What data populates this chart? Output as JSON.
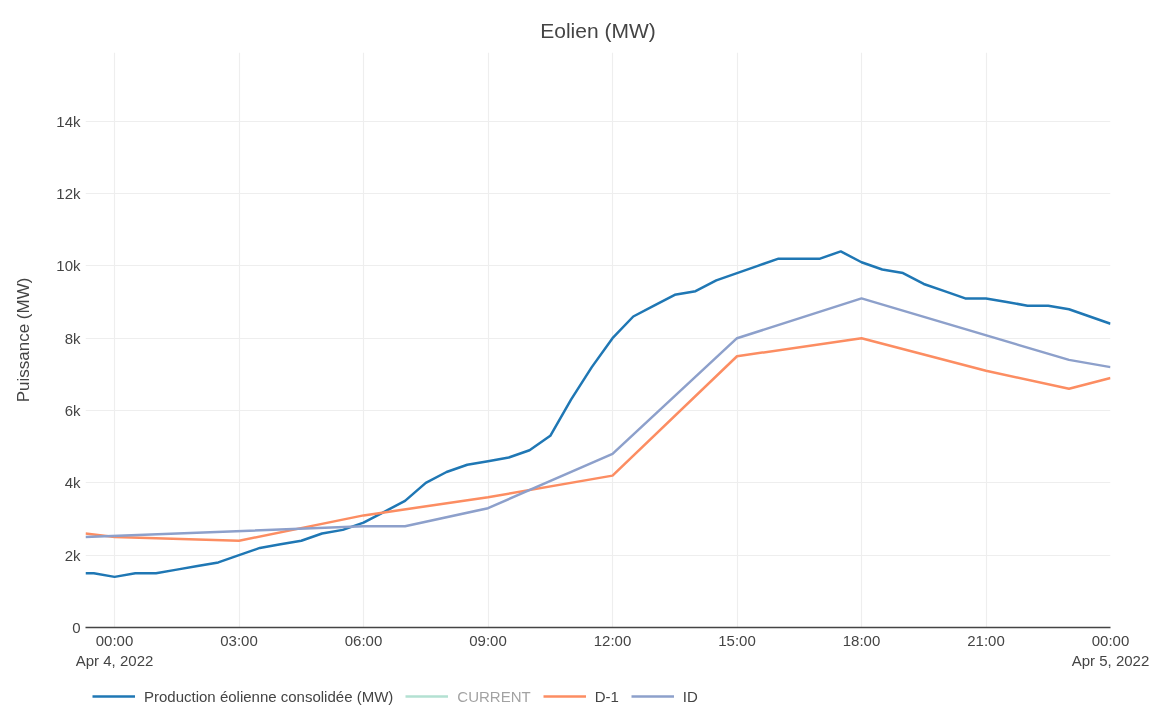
{
  "chart_data": {
    "type": "line",
    "title": "Eolien (MW)",
    "ylabel": "Puissance (MW)",
    "xlim": [
      "2022-04-03T23:18",
      "2022-04-05T00:00"
    ],
    "xticks": [
      {
        "value": "2022-04-04T00:00",
        "label": "00:00\nApr 4, 2022"
      },
      {
        "value": "2022-04-04T03:00",
        "label": "03:00"
      },
      {
        "value": "2022-04-04T06:00",
        "label": "06:00"
      },
      {
        "value": "2022-04-04T09:00",
        "label": "09:00"
      },
      {
        "value": "2022-04-04T12:00",
        "label": "12:00"
      },
      {
        "value": "2022-04-04T15:00",
        "label": "15:00"
      },
      {
        "value": "2022-04-04T18:00",
        "label": "18:00"
      },
      {
        "value": "2022-04-04T21:00",
        "label": "21:00"
      },
      {
        "value": "2022-04-05T00:00",
        "label": "00:00\nApr 5, 2022"
      }
    ],
    "ylim": [
      0,
      15900
    ],
    "yticks": [
      0,
      {
        "value": 2000,
        "label": "2k"
      },
      {
        "value": 4000,
        "label": "4k"
      },
      {
        "value": 6000,
        "label": "6k"
      },
      {
        "value": 8000,
        "label": "8k"
      },
      {
        "value": 10000,
        "label": "10k"
      },
      {
        "value": 12000,
        "label": "12k"
      },
      {
        "value": 14000,
        "label": "14k"
      }
    ],
    "grid": true,
    "legend": "bottom",
    "series": [
      {
        "name": "Production éolienne consolidée (MW)",
        "color": "#1f77b4",
        "x": [
          "2022-04-03T23:18",
          "2022-04-03T23:30",
          "2022-04-04T00:00",
          "2022-04-04T00:30",
          "2022-04-04T01:00",
          "2022-04-04T01:30",
          "2022-04-04T02:00",
          "2022-04-04T02:30",
          "2022-04-04T03:00",
          "2022-04-04T03:30",
          "2022-04-04T04:00",
          "2022-04-04T04:30",
          "2022-04-04T05:00",
          "2022-04-04T05:30",
          "2022-04-04T06:00",
          "2022-04-04T06:30",
          "2022-04-04T07:00",
          "2022-04-04T07:30",
          "2022-04-04T08:00",
          "2022-04-04T08:30",
          "2022-04-04T09:00",
          "2022-04-04T09:30",
          "2022-04-04T10:00",
          "2022-04-04T10:30",
          "2022-04-04T11:00",
          "2022-04-04T11:30",
          "2022-04-04T12:00",
          "2022-04-04T12:30",
          "2022-04-04T13:00",
          "2022-04-04T13:30",
          "2022-04-04T14:00",
          "2022-04-04T14:30",
          "2022-04-04T15:00",
          "2022-04-04T15:30",
          "2022-04-04T16:00",
          "2022-04-04T16:30",
          "2022-04-04T17:00",
          "2022-04-04T17:30",
          "2022-04-04T18:00",
          "2022-04-04T18:30",
          "2022-04-04T19:00",
          "2022-04-04T19:30",
          "2022-04-04T20:00",
          "2022-04-04T20:30",
          "2022-04-04T21:00",
          "2022-04-04T21:30",
          "2022-04-04T22:00",
          "2022-04-04T22:30",
          "2022-04-04T23:00",
          "2022-04-04T23:30",
          "2022-04-05T00:00"
        ],
        "values": [
          1500,
          1500,
          1400,
          1500,
          1500,
          1600,
          1700,
          1800,
          2000,
          2200,
          2300,
          2400,
          2600,
          2700,
          2900,
          3200,
          3500,
          4000,
          4300,
          4500,
          4600,
          4700,
          4900,
          5300,
          6300,
          7200,
          8000,
          8600,
          8900,
          9200,
          9300,
          9600,
          9800,
          10000,
          10200,
          10200,
          10200,
          10400,
          10100,
          9900,
          9800,
          9500,
          9300,
          9100,
          9100,
          9000,
          8900,
          8900,
          8800,
          8600,
          8400
        ]
      },
      {
        "name": "CURRENT",
        "color": "#66c2a5"
      },
      {
        "name": "D-1",
        "color": "#fc8d62",
        "x": [
          "2022-04-03T23:18",
          "2022-04-04T00:00",
          "2022-04-04T03:00",
          "2022-04-04T06:00",
          "2022-04-04T09:00",
          "2022-04-04T12:00",
          "2022-04-04T15:00",
          "2022-04-04T18:00",
          "2022-04-04T21:00",
          "2022-04-04T23:00",
          "2022-04-05T00:00"
        ],
        "values": [
          2600,
          2500,
          2400,
          3100,
          3600,
          4200,
          7500,
          8000,
          7100,
          6600,
          6900
        ]
      },
      {
        "name": "ID",
        "color": "#8da0cb",
        "x": [
          "2022-04-03T23:18",
          "2022-04-04T06:00",
          "2022-04-04T07:00",
          "2022-04-04T09:00",
          "2022-04-04T12:00",
          "2022-04-04T15:00",
          "2022-04-04T18:00",
          "2022-04-04T23:00",
          "2022-04-05T00:00"
        ],
        "values": [
          2500,
          2800,
          2800,
          3300,
          4800,
          8000,
          9100,
          7400,
          7200
        ]
      }
    ]
  }
}
